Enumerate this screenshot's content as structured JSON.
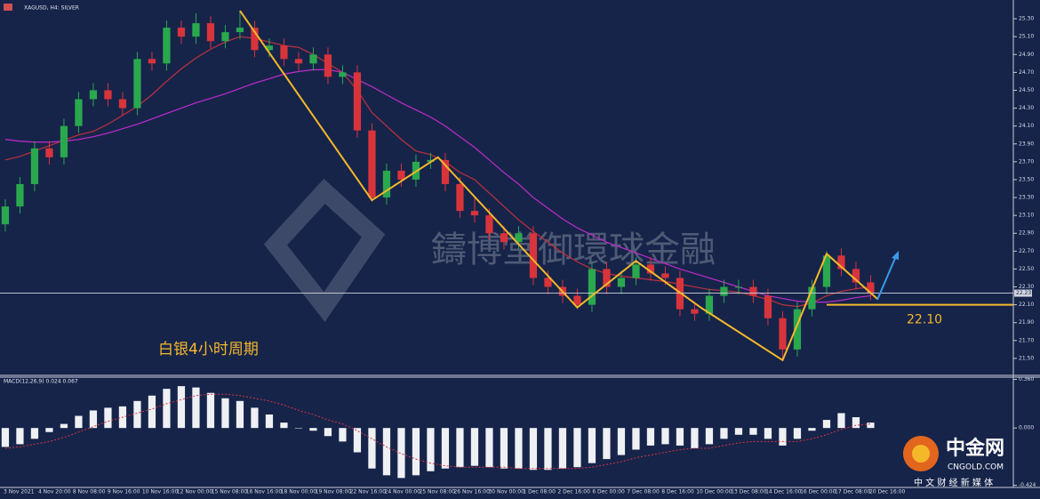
{
  "chart_data": {
    "type": "candlestick",
    "title": "XAGUSD, H4: SILVER",
    "annotation": "白银4小时周期",
    "watermark": "鑄博堂御環球金融",
    "logo": {
      "name": "中金网",
      "site": "CNGOLD.COM",
      "slogan": "中 文 财 经 新 媒 体"
    },
    "up_color": "#2aa84e",
    "down_color": "#d8343c",
    "xlim": [
      -0.36,
      68.73
    ],
    "ylim": [
      21.33,
      25.48
    ],
    "yticks": [
      {
        "value": 25.3,
        "label": "25.30"
      },
      {
        "value": 25.1,
        "label": "25.10"
      },
      {
        "value": 24.9,
        "label": "24.90"
      },
      {
        "value": 24.7,
        "label": "24.70"
      },
      {
        "value": 24.5,
        "label": "24.50"
      },
      {
        "value": 24.3,
        "label": "24.30"
      },
      {
        "value": 24.1,
        "label": "24.10"
      },
      {
        "value": 23.9,
        "label": "23.90"
      },
      {
        "value": 23.7,
        "label": "23.70"
      },
      {
        "value": 23.5,
        "label": "23.50"
      },
      {
        "value": 23.3,
        "label": "23.30"
      },
      {
        "value": 23.1,
        "label": "23.10"
      },
      {
        "value": 22.9,
        "label": "22.90"
      },
      {
        "value": 22.7,
        "label": "22.70"
      },
      {
        "value": 22.5,
        "label": "22.50"
      },
      {
        "value": 22.3,
        "label": "22.30"
      },
      {
        "value": 22.1,
        "label": "22.10"
      },
      {
        "value": 21.9,
        "label": "21.90"
      },
      {
        "value": 21.7,
        "label": "21.70"
      },
      {
        "value": 21.5,
        "label": "21.50"
      }
    ],
    "categories": [
      "3 Nov 2021",
      "4 Nov 20:00",
      "8 Nov 08:00",
      "9 Nov 16:00",
      "10 Nov 16:00",
      "12 Nov 00:00",
      "15 Nov 08:00",
      "16 Nov 16:00",
      "18 Nov 00:00",
      "19 Nov 08:00",
      "22 Nov 16:00",
      "24 Nov 00:00",
      "25 Nov 08:00",
      "26 Nov 16:00",
      "30 Nov 00:00",
      "1 Dec 08:00",
      "2 Dec 16:00",
      "6 Dec 00:00",
      "7 Dec 08:00",
      "8 Dec 16:00",
      "10 Dec 00:00",
      "13 Dec 08:00",
      "14 Dec 16:00",
      "16 Dec 00:00",
      "17 Dec 08:00",
      "20 Dec 16:00"
    ],
    "candles": [
      [
        23.0,
        23.28,
        22.92,
        23.2
      ],
      [
        23.2,
        23.53,
        23.12,
        23.45
      ],
      [
        23.45,
        23.93,
        23.37,
        23.85
      ],
      [
        23.85,
        23.93,
        23.67,
        23.75
      ],
      [
        23.75,
        24.18,
        23.67,
        24.1
      ],
      [
        24.1,
        24.48,
        24.02,
        24.4
      ],
      [
        24.4,
        24.58,
        24.32,
        24.5
      ],
      [
        24.5,
        24.58,
        24.32,
        24.4
      ],
      [
        24.4,
        24.48,
        24.22,
        24.3
      ],
      [
        24.3,
        24.93,
        24.22,
        24.85
      ],
      [
        24.85,
        24.93,
        24.72,
        24.8
      ],
      [
        24.8,
        25.28,
        24.72,
        25.2
      ],
      [
        25.2,
        25.28,
        25.02,
        25.1
      ],
      [
        25.1,
        25.36,
        25.02,
        25.25
      ],
      [
        25.25,
        25.33,
        24.97,
        25.05
      ],
      [
        25.05,
        25.23,
        24.97,
        25.15
      ],
      [
        25.15,
        25.39,
        25.07,
        25.2
      ],
      [
        25.2,
        25.28,
        24.87,
        24.95
      ],
      [
        24.95,
        25.08,
        24.87,
        25.0
      ],
      [
        25.0,
        25.08,
        24.77,
        24.85
      ],
      [
        24.85,
        24.93,
        24.72,
        24.8
      ],
      [
        24.8,
        24.98,
        24.72,
        24.9
      ],
      [
        24.9,
        24.98,
        24.57,
        24.65
      ],
      [
        24.65,
        24.78,
        24.57,
        24.7
      ],
      [
        24.7,
        24.78,
        23.97,
        24.05
      ],
      [
        24.05,
        24.13,
        23.25,
        23.3
      ],
      [
        23.3,
        23.68,
        23.22,
        23.6
      ],
      [
        23.6,
        23.68,
        23.42,
        23.5
      ],
      [
        23.5,
        23.78,
        23.42,
        23.7
      ],
      [
        23.7,
        23.8,
        23.62,
        23.72
      ],
      [
        23.72,
        23.8,
        23.37,
        23.45
      ],
      [
        23.45,
        23.53,
        23.07,
        23.15
      ],
      [
        23.15,
        23.3,
        23.02,
        23.1
      ],
      [
        23.1,
        23.18,
        22.82,
        22.9
      ],
      [
        22.9,
        22.98,
        22.72,
        22.8
      ],
      [
        22.8,
        22.98,
        22.72,
        22.9
      ],
      [
        22.9,
        22.98,
        22.32,
        22.4
      ],
      [
        22.4,
        22.48,
        22.22,
        22.3
      ],
      [
        22.3,
        22.38,
        22.12,
        22.2
      ],
      [
        22.2,
        22.28,
        22.05,
        22.1
      ],
      [
        22.1,
        22.58,
        22.02,
        22.5
      ],
      [
        22.5,
        22.58,
        22.22,
        22.3
      ],
      [
        22.3,
        22.48,
        22.22,
        22.4
      ],
      [
        22.4,
        22.63,
        22.32,
        22.55
      ],
      [
        22.55,
        22.63,
        22.37,
        22.45
      ],
      [
        22.45,
        22.53,
        22.32,
        22.4
      ],
      [
        22.4,
        22.48,
        21.97,
        22.05
      ],
      [
        22.05,
        22.13,
        21.92,
        22.0
      ],
      [
        22.0,
        22.28,
        21.92,
        22.2
      ],
      [
        22.2,
        22.38,
        22.12,
        22.3
      ],
      [
        22.3,
        22.38,
        22.22,
        22.3
      ],
      [
        22.3,
        22.38,
        22.12,
        22.2
      ],
      [
        22.2,
        22.28,
        21.87,
        21.95
      ],
      [
        21.95,
        22.03,
        21.48,
        21.6
      ],
      [
        21.6,
        22.13,
        21.52,
        22.05
      ],
      [
        22.05,
        22.38,
        21.97,
        22.3
      ],
      [
        22.3,
        22.7,
        22.22,
        22.65
      ],
      [
        22.65,
        22.73,
        22.42,
        22.5
      ],
      [
        22.5,
        22.58,
        22.27,
        22.35
      ],
      [
        22.35,
        22.43,
        22.15,
        22.23
      ]
    ],
    "moving_averages": [
      {
        "color": "#c0303c",
        "values": [
          23.72,
          23.76,
          23.82,
          23.88,
          23.94,
          24.0,
          24.04,
          24.12,
          24.22,
          24.32,
          24.45,
          24.6,
          24.74,
          24.86,
          24.96,
          25.04,
          25.1,
          25.08,
          25.04,
          25.0,
          24.98,
          24.9,
          24.8,
          24.7,
          24.5,
          24.25,
          24.1,
          23.95,
          23.82,
          23.78,
          23.7,
          23.58,
          23.5,
          23.35,
          23.2,
          23.05,
          22.92,
          22.8,
          22.68,
          22.58,
          22.5,
          22.45,
          22.42,
          22.4,
          22.38,
          22.36,
          22.33,
          22.3,
          22.27,
          22.26,
          22.24,
          22.2,
          22.16,
          22.1,
          22.08,
          22.12,
          22.2,
          22.25,
          22.28,
          22.3
        ]
      },
      {
        "color": "#c02bc8",
        "values": [
          23.95,
          23.93,
          23.92,
          23.92,
          23.93,
          23.95,
          23.98,
          24.02,
          24.07,
          24.12,
          24.18,
          24.24,
          24.3,
          24.36,
          24.41,
          24.46,
          24.52,
          24.58,
          24.63,
          24.68,
          24.71,
          24.73,
          24.73,
          24.7,
          24.62,
          24.54,
          24.45,
          24.36,
          24.28,
          24.2,
          24.1,
          23.98,
          23.86,
          23.72,
          23.58,
          23.45,
          23.3,
          23.18,
          23.06,
          22.96,
          22.88,
          22.8,
          22.74,
          22.68,
          22.62,
          22.56,
          22.5,
          22.45,
          22.4,
          22.35,
          22.3,
          22.25,
          22.2,
          22.17,
          22.14,
          22.13,
          22.13,
          22.15,
          22.18,
          22.2
        ]
      }
    ],
    "zigzag": {
      "color": "#f5b82a",
      "x": [
        16,
        25,
        29.5,
        39,
        43,
        47.5,
        53,
        56,
        59.5
      ],
      "values": [
        25.39,
        23.27,
        23.75,
        22.07,
        22.59,
        22.06,
        21.48,
        22.67,
        22.16
      ]
    },
    "last_price": {
      "value": 22.23,
      "label": "22.23"
    },
    "support": {
      "value": 22.1,
      "label": "22.10",
      "color": "#f5b82a"
    },
    "macd": {
      "label": "MACD(12,26,9) 0.024 0.067",
      "ylim": [
        -0.44,
        0.37
      ],
      "yticks": [
        {
          "value": 0.36,
          "label": "0.360"
        },
        {
          "value": 0,
          "label": "0.000"
        },
        {
          "value": -0.424,
          "label": "-0.424"
        }
      ],
      "histogram": [
        -0.14,
        -0.12,
        -0.08,
        -0.03,
        0.03,
        0.09,
        0.13,
        0.15,
        0.16,
        0.2,
        0.24,
        0.29,
        0.31,
        0.3,
        0.26,
        0.22,
        0.2,
        0.15,
        0.1,
        0.04,
        0.0,
        -0.02,
        -0.06,
        -0.1,
        -0.18,
        -0.3,
        -0.35,
        -0.37,
        -0.35,
        -0.32,
        -0.3,
        -0.29,
        -0.28,
        -0.29,
        -0.3,
        -0.3,
        -0.31,
        -0.31,
        -0.3,
        -0.29,
        -0.26,
        -0.23,
        -0.2,
        -0.16,
        -0.13,
        -0.12,
        -0.13,
        -0.15,
        -0.12,
        -0.08,
        -0.05,
        -0.05,
        -0.08,
        -0.13,
        -0.08,
        -0.02,
        0.06,
        0.11,
        0.08,
        0.04
      ],
      "signal": [
        -0.15,
        -0.14,
        -0.12,
        -0.1,
        -0.07,
        -0.03,
        0.01,
        0.05,
        0.08,
        0.11,
        0.14,
        0.18,
        0.21,
        0.24,
        0.25,
        0.25,
        0.24,
        0.22,
        0.2,
        0.17,
        0.13,
        0.1,
        0.06,
        0.03,
        -0.02,
        -0.08,
        -0.14,
        -0.19,
        -0.23,
        -0.26,
        -0.28,
        -0.29,
        -0.29,
        -0.29,
        -0.29,
        -0.3,
        -0.3,
        -0.3,
        -0.3,
        -0.3,
        -0.29,
        -0.27,
        -0.25,
        -0.22,
        -0.2,
        -0.18,
        -0.16,
        -0.15,
        -0.15,
        -0.13,
        -0.11,
        -0.1,
        -0.1,
        -0.1,
        -0.1,
        -0.08,
        -0.05,
        -0.01,
        0.02,
        0.03
      ]
    }
  }
}
